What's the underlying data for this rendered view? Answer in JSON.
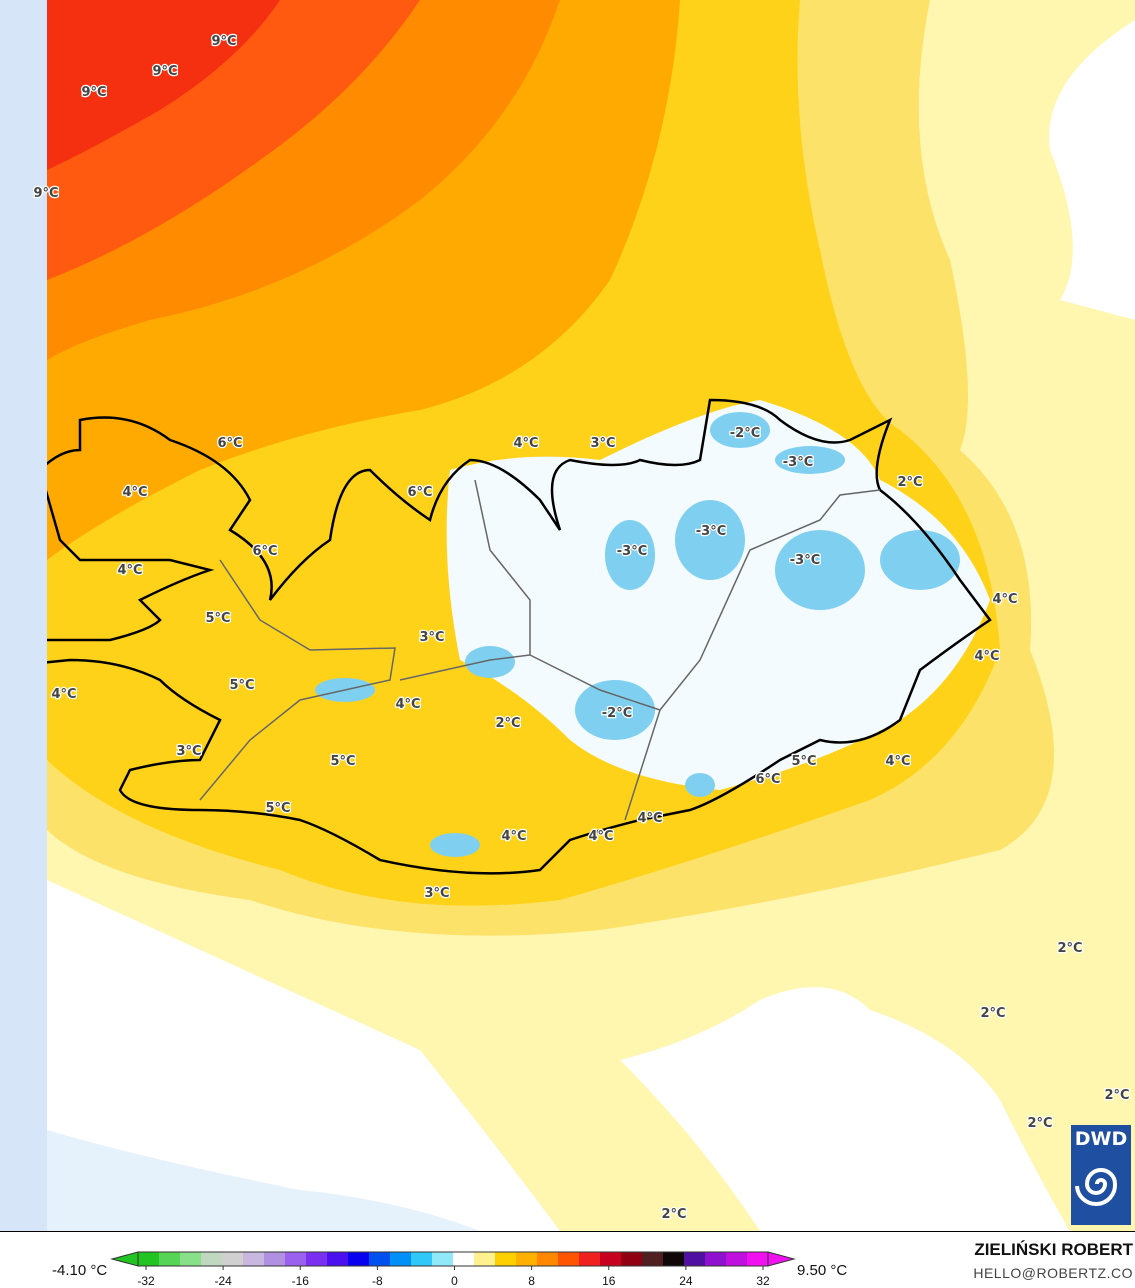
{
  "map": {
    "variable_unit": "°C",
    "labels": [
      "9°C",
      "9°C",
      "9°C",
      "9°C",
      "6°C",
      "4°C",
      "6°C",
      "4°C",
      "5°C",
      "4°C",
      "5°C",
      "3°C",
      "5°C",
      "6°C",
      "4°C",
      "3°C",
      "-2°C",
      "-3°C",
      "2°C",
      "-3°C",
      "-3°C",
      "-3°C",
      "4°C",
      "4°C",
      "3°C",
      "4°C",
      "2°C",
      "-2°C",
      "5°C",
      "5°C",
      "6°C",
      "4°C",
      "4°C",
      "4°C",
      "4°C",
      "3°C",
      "2°C",
      "2°C",
      "2°C",
      "2°C",
      "2°C"
    ]
  },
  "legend": {
    "min_value": "-4.10 °C",
    "max_value": "9.50 °C",
    "ticks": [
      "-32",
      "-24",
      "-16",
      "-8",
      "0",
      "8",
      "16",
      "24",
      "32"
    ],
    "colors": [
      "#22c422",
      "#55d455",
      "#88e088",
      "#c0d8c0",
      "#d0d0d0",
      "#c8b8e0",
      "#b090e0",
      "#9a60ee",
      "#7a30f0",
      "#4a10f0",
      "#0a00f0",
      "#0050f0",
      "#0090f8",
      "#30c8f8",
      "#90e8f8",
      "#ffffff",
      "#fff090",
      "#ffd000",
      "#ffb000",
      "#ff8800",
      "#ff5500",
      "#f02020",
      "#c80020",
      "#900010",
      "#502020",
      "#100808",
      "#5010a0",
      "#9010d0",
      "#c010e0",
      "#f010f0"
    ]
  },
  "credits": {
    "author": "ZIELIŃSKI ROBERT",
    "email": "HELLO@ROBERTZ.CO",
    "logo_text": "DWD"
  }
}
